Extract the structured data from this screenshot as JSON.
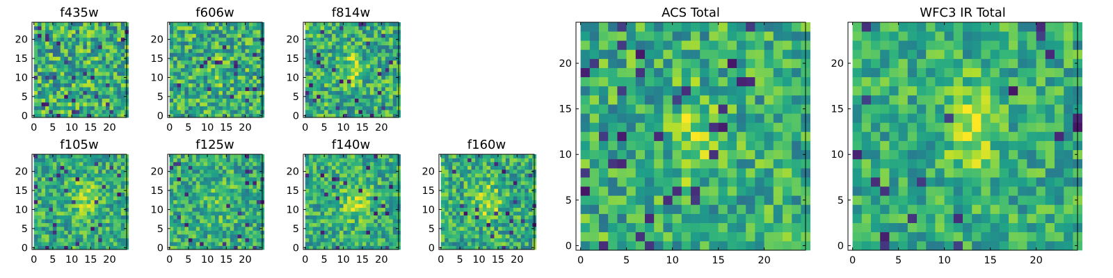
{
  "chart_data": [
    {
      "type": "heatmap",
      "title": "f435w",
      "xticks": [
        "0",
        "5",
        "10",
        "15",
        "20"
      ],
      "yticks": [
        "0",
        "5",
        "10",
        "15",
        "20"
      ],
      "xlim": [
        -0.5,
        24.5
      ],
      "ylim": [
        -0.5,
        24.5
      ],
      "grid_size": 25,
      "colormap": "viridis",
      "bright_region": "none (mostly noise)"
    },
    {
      "type": "heatmap",
      "title": "f606w",
      "xticks": [
        "0",
        "5",
        "10",
        "15",
        "20"
      ],
      "yticks": [
        "0",
        "5",
        "10",
        "15",
        "20"
      ],
      "xlim": [
        -0.5,
        24.5
      ],
      "ylim": [
        -0.5,
        24.5
      ],
      "grid_size": 25,
      "colormap": "viridis",
      "bright_region": "faint central source"
    },
    {
      "type": "heatmap",
      "title": "f814w",
      "xticks": [
        "0",
        "5",
        "10",
        "15",
        "20"
      ],
      "yticks": [
        "0",
        "5",
        "10",
        "15",
        "20"
      ],
      "xlim": [
        -0.5,
        24.5
      ],
      "ylim": [
        -0.5,
        24.5
      ],
      "grid_size": 25,
      "colormap": "viridis",
      "bright_region": "central elongated source"
    },
    {
      "type": "heatmap",
      "title": "f105w",
      "xticks": [
        "0",
        "5",
        "10",
        "15",
        "20"
      ],
      "yticks": [
        "0",
        "5",
        "10",
        "15",
        "20"
      ],
      "xlim": [
        -0.5,
        24.5
      ],
      "ylim": [
        -0.5,
        24.5
      ],
      "grid_size": 25,
      "colormap": "viridis",
      "bright_region": "central source"
    },
    {
      "type": "heatmap",
      "title": "f125w",
      "xticks": [
        "0",
        "5",
        "10",
        "15",
        "20"
      ],
      "yticks": [
        "0",
        "5",
        "10",
        "15",
        "20"
      ],
      "xlim": [
        -0.5,
        24.5
      ],
      "ylim": [
        -0.5,
        24.5
      ],
      "grid_size": 25,
      "colormap": "viridis",
      "bright_region": "faint central source"
    },
    {
      "type": "heatmap",
      "title": "f140w",
      "xticks": [
        "0",
        "5",
        "10",
        "15",
        "20"
      ],
      "yticks": [
        "0",
        "5",
        "10",
        "15",
        "20"
      ],
      "xlim": [
        -0.5,
        24.5
      ],
      "ylim": [
        -0.5,
        24.5
      ],
      "grid_size": 25,
      "colormap": "viridis",
      "bright_region": "central source"
    },
    {
      "type": "heatmap",
      "title": "f160w",
      "xticks": [
        "0",
        "5",
        "10",
        "15",
        "20"
      ],
      "yticks": [
        "0",
        "5",
        "10",
        "15",
        "20"
      ],
      "xlim": [
        -0.5,
        24.5
      ],
      "ylim": [
        -0.5,
        24.5
      ],
      "grid_size": 25,
      "colormap": "viridis",
      "bright_region": "central elongated source"
    },
    {
      "type": "heatmap",
      "title": "ACS Total",
      "xticks": [
        "0",
        "5",
        "10",
        "15",
        "20"
      ],
      "yticks": [
        "0",
        "5",
        "10",
        "15",
        "20"
      ],
      "xlim": [
        -0.5,
        24.5
      ],
      "ylim": [
        -0.5,
        24.5
      ],
      "grid_size": 25,
      "colormap": "viridis",
      "bright_region": "central elongated source near x=11-13, y=10-15"
    },
    {
      "type": "heatmap",
      "title": "WFC3 IR Total",
      "xticks": [
        "0",
        "5",
        "10",
        "15",
        "20"
      ],
      "yticks": [
        "0",
        "5",
        "10",
        "15",
        "20"
      ],
      "xlim": [
        -0.5,
        24.5
      ],
      "ylim": [
        -0.5,
        24.5
      ],
      "grid_size": 25,
      "colormap": "viridis",
      "bright_region": "central elongated source near x=11-14, y=10-16"
    }
  ]
}
